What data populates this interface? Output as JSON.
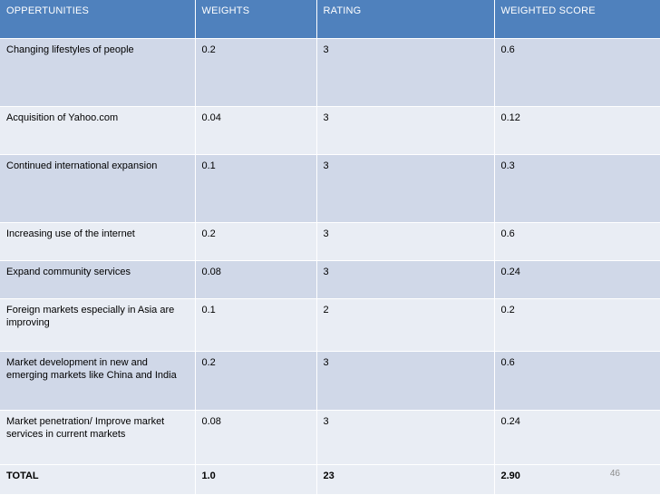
{
  "table": {
    "headers": [
      "OPPERTUNITIES",
      "WEIGHTS",
      "RATING",
      "WEIGHTED SCORE"
    ],
    "rows": [
      {
        "opportunity": "Changing lifestyles of people",
        "weight": "0.2",
        "rating": "3",
        "score": "0.6"
      },
      {
        "opportunity": "Acquisition of Yahoo.com",
        "weight": "0.04",
        "rating": "3",
        "score": "0.12"
      },
      {
        "opportunity": "Continued international expansion",
        "weight": "0.1",
        "rating": "3",
        "score": "0.3"
      },
      {
        "opportunity": "Increasing use of the internet",
        "weight": "0.2",
        "rating": "3",
        "score": "0.6"
      },
      {
        "opportunity": "Expand community services",
        "weight": "0.08",
        "rating": "3",
        "score": "0.24"
      },
      {
        "opportunity": "Foreign markets especially in Asia are improving",
        "weight": "0.1",
        "rating": "2",
        "score": "0.2"
      },
      {
        "opportunity": "Market development in new and emerging markets like China and India",
        "weight": "0.2",
        "rating": "3",
        "score": "0.6"
      },
      {
        "opportunity": "Market penetration/ Improve market services in current markets",
        "weight": "0.08",
        "rating": "3",
        "score": "0.24"
      }
    ],
    "total": {
      "label": "TOTAL",
      "weight": "1.0",
      "rating": "23",
      "score": "2.90"
    }
  },
  "slide_number": "46"
}
